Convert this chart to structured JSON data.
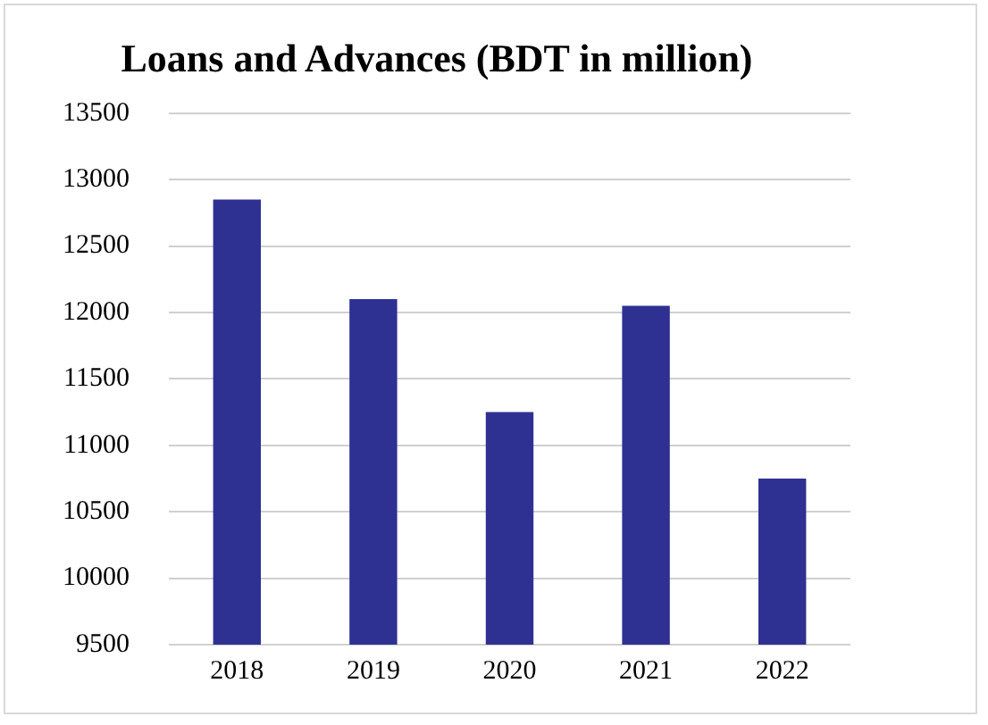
{
  "chart_data": {
    "type": "bar",
    "title": "Loans and Advances (BDT in million)",
    "categories": [
      "2018",
      "2019",
      "2020",
      "2021",
      "2022"
    ],
    "values": [
      12850,
      12100,
      11250,
      12050,
      10750
    ],
    "color": "#2e3192",
    "ylim": [
      9500,
      13500
    ],
    "yticks": [
      9500,
      10000,
      10500,
      11000,
      11500,
      12000,
      12500,
      13000,
      13500
    ],
    "grid": "y",
    "legend": false
  }
}
